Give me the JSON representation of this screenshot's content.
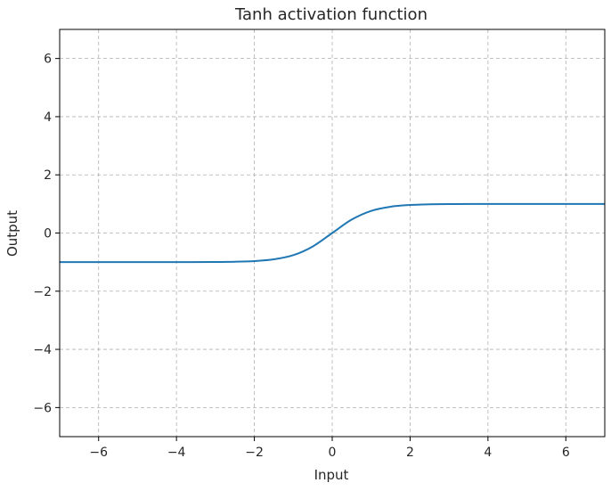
{
  "chart_data": {
    "type": "line",
    "title": "Tanh activation function",
    "xlabel": "Input",
    "ylabel": "Output",
    "xlim": [
      -7,
      7
    ],
    "ylim": [
      -7,
      7
    ],
    "xticks": [
      -6,
      -4,
      -2,
      0,
      2,
      4,
      6
    ],
    "yticks": [
      -6,
      -4,
      -2,
      0,
      2,
      4,
      6
    ],
    "xtick_labels": [
      "−6",
      "−4",
      "−2",
      "0",
      "2",
      "4",
      "6"
    ],
    "ytick_labels": [
      "−6",
      "−4",
      "−2",
      "0",
      "2",
      "4",
      "6"
    ],
    "grid": true,
    "grid_style": "dashed",
    "series": [
      {
        "color": "#1f77b4",
        "x": [
          -7,
          -6,
          -5,
          -4,
          -3,
          -2.5,
          -2,
          -1.5,
          -1,
          -0.5,
          0,
          0.5,
          1,
          1.5,
          2,
          2.5,
          3,
          4,
          5,
          6,
          7
        ],
        "y": [
          -1.0,
          -1.0,
          -0.9999,
          -0.9993,
          -0.9951,
          -0.9866,
          -0.964,
          -0.9051,
          -0.7616,
          -0.4621,
          0.0,
          0.4621,
          0.7616,
          0.9051,
          0.964,
          0.9866,
          0.9951,
          0.9993,
          0.9999,
          1.0,
          1.0
        ]
      }
    ]
  }
}
